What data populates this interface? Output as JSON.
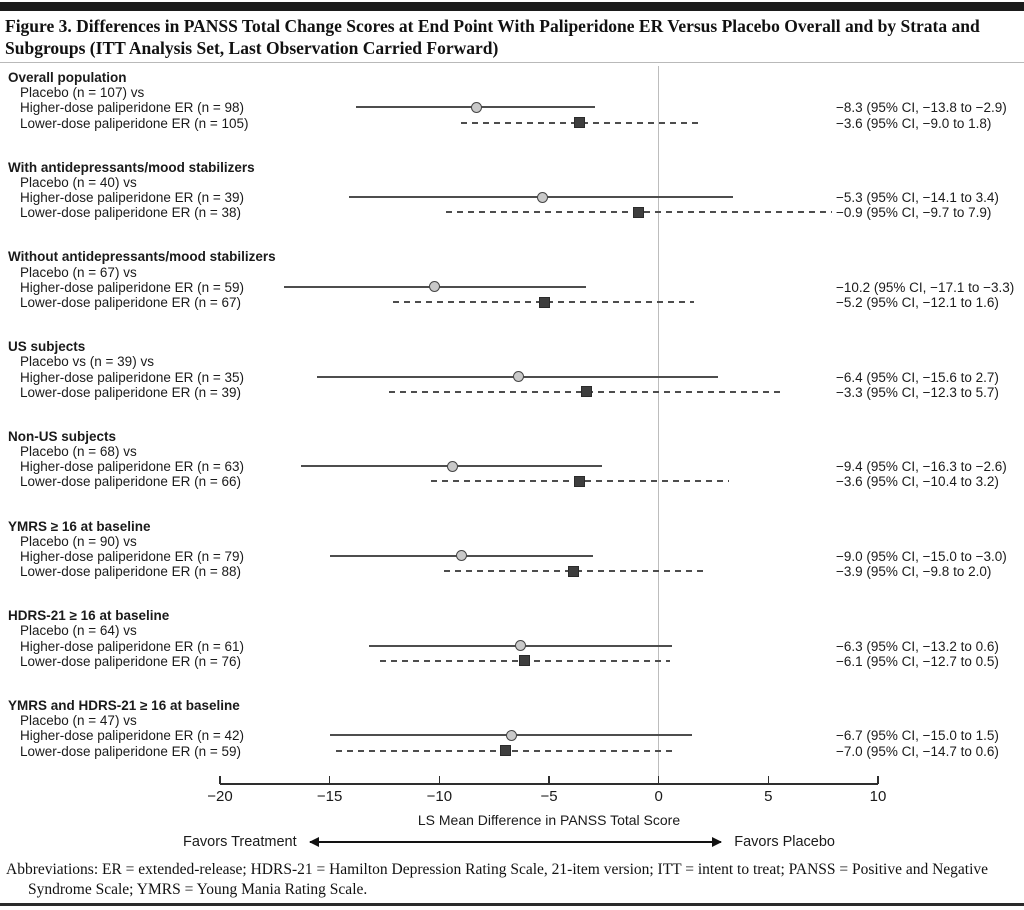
{
  "title": "Figure 3. Differences in PANSS Total Change Scores at End Point With Paliperidone ER Versus Placebo Overall and by Strata and Subgroups (ITT Analysis Set, Last Observation Carried Forward)",
  "footer": "Abbreviations: ER = extended-release; HDRS-21 = Hamilton Depression Rating Scale, 21-item version; ITT = intent to treat; PANSS = Positive and Negative Syndrome Scale; YMRS = Young Mania Rating Scale.",
  "chart_data": {
    "type": "forest",
    "xlabel": "LS Mean Difference in PANSS Total Score",
    "xlim": [
      -20,
      10
    ],
    "x_ticks": [
      -20,
      -15,
      -10,
      -5,
      0,
      5,
      10
    ],
    "reference_line": 0,
    "favors_left": "Favors Treatment",
    "favors_right": "Favors Placebo",
    "colors": {
      "solid_line": "#4d4d4d",
      "dashed_line": "#4d4d4d",
      "circle_fill": "#c9c9c9",
      "square_fill": "#3e3e3e",
      "reference_line": "#bdbdbd"
    },
    "groups": [
      {
        "header": "Overall population",
        "comparator": "Placebo (n = 107) vs",
        "rows": [
          {
            "label": "Higher-dose paliperidone ER (n = 98)",
            "estimate": -8.3,
            "ci_low": -13.8,
            "ci_high": -2.9,
            "ci_text": "−8.3 (95% CI, −13.8 to −2.9)",
            "style": "solid-circle"
          },
          {
            "label": "Lower-dose paliperidone ER (n = 105)",
            "estimate": -3.6,
            "ci_low": -9.0,
            "ci_high": 1.8,
            "ci_text": "−3.6 (95% CI, −9.0 to 1.8)",
            "style": "dashed-square"
          }
        ]
      },
      {
        "header": "With antidepressants/mood stabilizers",
        "comparator": "Placebo (n = 40) vs",
        "rows": [
          {
            "label": "Higher-dose paliperidone ER (n = 39)",
            "estimate": -5.3,
            "ci_low": -14.1,
            "ci_high": 3.4,
            "ci_text": "−5.3 (95% CI, −14.1 to 3.4)",
            "style": "solid-circle"
          },
          {
            "label": "Lower-dose paliperidone ER (n = 38)",
            "estimate": -0.9,
            "ci_low": -9.7,
            "ci_high": 7.9,
            "ci_text": "−0.9 (95% CI, −9.7 to 7.9)",
            "style": "dashed-square"
          }
        ]
      },
      {
        "header": "Without antidepressants/mood stabilizers",
        "comparator": "Placebo (n = 67) vs",
        "rows": [
          {
            "label": "Higher-dose paliperidone ER (n = 59)",
            "estimate": -10.2,
            "ci_low": -17.1,
            "ci_high": -3.3,
            "ci_text": "−10.2 (95% CI, −17.1 to −3.3)",
            "style": "solid-circle"
          },
          {
            "label": "Lower-dose paliperidone ER (n = 67)",
            "estimate": -5.2,
            "ci_low": -12.1,
            "ci_high": 1.6,
            "ci_text": "−5.2 (95% CI, −12.1 to 1.6)",
            "style": "dashed-square"
          }
        ]
      },
      {
        "header": "US subjects",
        "comparator": "Placebo vs (n = 39) vs",
        "rows": [
          {
            "label": "Higher-dose paliperidone ER (n = 35)",
            "estimate": -6.4,
            "ci_low": -15.6,
            "ci_high": 2.7,
            "ci_text": "−6.4 (95% CI, −15.6 to 2.7)",
            "style": "solid-circle"
          },
          {
            "label": "Lower-dose paliperidone ER (n = 39)",
            "estimate": -3.3,
            "ci_low": -12.3,
            "ci_high": 5.7,
            "ci_text": "−3.3 (95% CI, −12.3 to 5.7)",
            "style": "dashed-square"
          }
        ]
      },
      {
        "header": "Non-US subjects",
        "comparator": "Placebo (n = 68) vs",
        "rows": [
          {
            "label": "Higher-dose paliperidone ER (n = 63)",
            "estimate": -9.4,
            "ci_low": -16.3,
            "ci_high": -2.6,
            "ci_text": "−9.4 (95% CI, −16.3 to −2.6)",
            "style": "solid-circle"
          },
          {
            "label": "Lower-dose paliperidone ER (n = 66)",
            "estimate": -3.6,
            "ci_low": -10.4,
            "ci_high": 3.2,
            "ci_text": "−3.6 (95% CI, −10.4 to 3.2)",
            "style": "dashed-square"
          }
        ]
      },
      {
        "header": "YMRS ≥ 16 at baseline",
        "comparator": "Placebo (n = 90) vs",
        "rows": [
          {
            "label": "Higher-dose paliperidone ER (n = 79)",
            "estimate": -9.0,
            "ci_low": -15.0,
            "ci_high": -3.0,
            "ci_text": "−9.0 (95% CI, −15.0 to −3.0)",
            "style": "solid-circle"
          },
          {
            "label": "Lower-dose paliperidone ER (n = 88)",
            "estimate": -3.9,
            "ci_low": -9.8,
            "ci_high": 2.0,
            "ci_text": "−3.9 (95% CI, −9.8 to 2.0)",
            "style": "dashed-square"
          }
        ]
      },
      {
        "header": "HDRS-21 ≥ 16 at baseline",
        "comparator": "Placebo (n = 64) vs",
        "rows": [
          {
            "label": "Higher-dose paliperidone ER (n = 61)",
            "estimate": -6.3,
            "ci_low": -13.2,
            "ci_high": 0.6,
            "ci_text": "−6.3 (95% CI, −13.2 to 0.6)",
            "style": "solid-circle"
          },
          {
            "label": "Lower-dose paliperidone ER (n = 76)",
            "estimate": -6.1,
            "ci_low": -12.7,
            "ci_high": 0.5,
            "ci_text": "−6.1 (95% CI, −12.7 to 0.5)",
            "style": "dashed-square"
          }
        ]
      },
      {
        "header": "YMRS and HDRS-21 ≥ 16 at baseline",
        "comparator": "Placebo (n = 47) vs",
        "rows": [
          {
            "label": "Higher-dose paliperidone ER (n = 42)",
            "estimate": -6.7,
            "ci_low": -15.0,
            "ci_high": 1.5,
            "ci_text": "−6.7 (95% CI, −15.0 to 1.5)",
            "style": "solid-circle"
          },
          {
            "label": "Lower-dose paliperidone ER (n = 59)",
            "estimate": -7.0,
            "ci_low": -14.7,
            "ci_high": 0.6,
            "ci_text": "−7.0 (95% CI, −14.7 to 0.6)",
            "style": "dashed-square"
          }
        ]
      }
    ]
  }
}
